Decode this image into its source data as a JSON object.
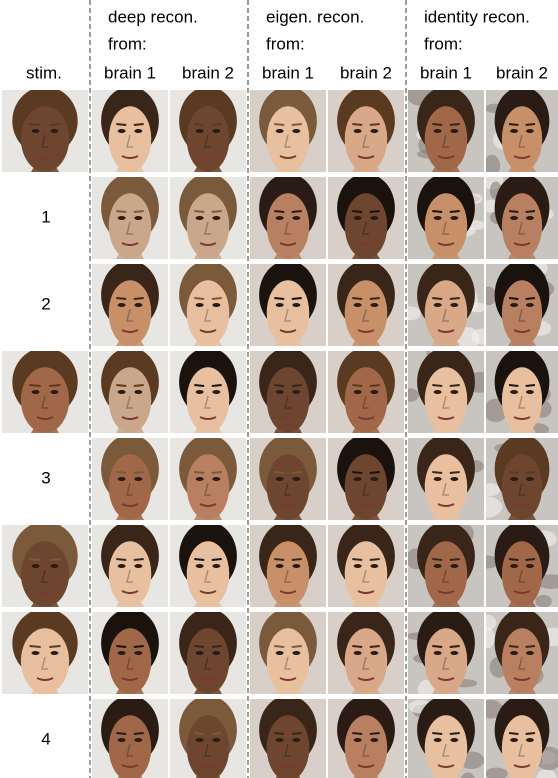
{
  "header": {
    "stim": "stim.",
    "groups": [
      {
        "title": [
          "deep recon.",
          "from:"
        ],
        "columns": [
          "brain 1",
          "brain 2"
        ]
      },
      {
        "title": [
          "eigen. recon.",
          "from:"
        ],
        "columns": [
          "brain 1",
          "brain 2"
        ]
      },
      {
        "title": [
          "identity recon.",
          "from:"
        ],
        "columns": [
          "brain 1",
          "brain 2"
        ]
      }
    ]
  },
  "row_labels": [
    "1",
    "2",
    "3",
    "4"
  ]
}
